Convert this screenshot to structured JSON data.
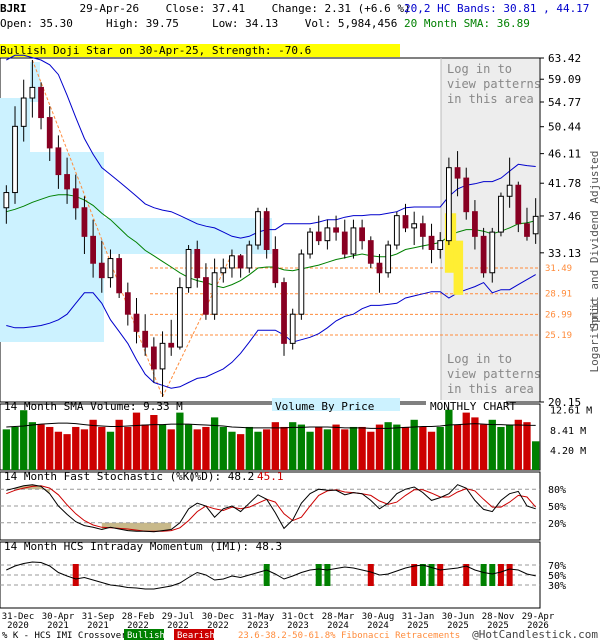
{
  "header": {
    "ticker": "BJRI",
    "date": "29-Apr-26",
    "close_label": "Close: 37.41",
    "change_label": "Change: 2.31 (+6.6 %)",
    "open_label": "Open: 35.30",
    "high_label": "High: 39.75",
    "low_label": "Low: 34.13",
    "vol_label": "Vol: 5,984,456",
    "bands_label": "20,2 HC Bands: 30.81 , 44.17",
    "sma_label": "20 Month SMA: 36.89"
  },
  "pattern_banner": "Bullish Doji Star on 30-Apr-25, Strength: -70.6",
  "log_text": "Log in to view patterns in this area",
  "colors": {
    "up": "#008000",
    "down": "#cc0000",
    "candle_down": "#880022",
    "band": "#0000cc",
    "sma": "#008000",
    "cyan": "#ccf2ff",
    "fib": "#ff8c3c"
  },
  "chart_data": [
    {
      "type": "candlestick",
      "title": "BJRI monthly",
      "y_scale": "log",
      "ylim": [
        20.15,
        63.42
      ],
      "y_ticks": [
        "63.42",
        "59.09",
        "54.77",
        "50.44",
        "46.11",
        "41.78",
        "37.46",
        "33.13",
        "20.15"
      ],
      "fib_levels": [
        "31.49",
        "28.91",
        "26.99",
        "25.19"
      ],
      "fib_values": [
        31.49,
        28.91,
        26.99,
        25.19
      ],
      "side_label": "Split and Dividend Adjusted",
      "side_label2": "Logarithmic",
      "chart_label": "MONTHLY CHART",
      "vbp_label": "Volume By Price",
      "candles": [
        [
          38.5,
          41.5,
          36.5,
          40.5
        ],
        [
          40.5,
          54.0,
          39.0,
          50.5
        ],
        [
          50.5,
          59.0,
          48.0,
          55.5
        ],
        [
          55.5,
          63.0,
          52.0,
          57.5
        ],
        [
          57.5,
          58.5,
          50.0,
          52.0
        ],
        [
          52.0,
          54.0,
          45.0,
          47.0
        ],
        [
          47.0,
          49.0,
          41.0,
          43.0
        ],
        [
          43.0,
          45.5,
          39.0,
          41.0
        ],
        [
          41.0,
          43.0,
          37.0,
          38.5
        ],
        [
          38.5,
          40.0,
          33.0,
          35.0
        ],
        [
          35.0,
          37.0,
          30.5,
          32.0
        ],
        [
          32.0,
          34.5,
          29.0,
          30.5
        ],
        [
          30.5,
          33.5,
          29.5,
          32.5
        ],
        [
          32.5,
          33.0,
          28.5,
          29.0
        ],
        [
          29.0,
          30.0,
          26.0,
          27.0
        ],
        [
          27.0,
          28.5,
          24.5,
          25.5
        ],
        [
          25.5,
          27.0,
          23.5,
          24.2
        ],
        [
          24.2,
          25.0,
          21.5,
          22.5
        ],
        [
          22.5,
          25.5,
          20.5,
          24.5
        ],
        [
          24.5,
          26.5,
          23.5,
          24.2
        ],
        [
          24.2,
          30.5,
          24.0,
          29.5
        ],
        [
          29.5,
          34.0,
          29.0,
          33.5
        ],
        [
          33.5,
          34.5,
          29.5,
          30.5
        ],
        [
          30.5,
          32.0,
          26.5,
          27.0
        ],
        [
          27.0,
          32.5,
          26.5,
          31.0
        ],
        [
          31.0,
          32.5,
          30.0,
          31.5
        ],
        [
          31.5,
          33.5,
          30.5,
          32.8
        ],
        [
          32.8,
          33.0,
          30.5,
          31.5
        ],
        [
          31.5,
          34.5,
          31.0,
          34.0
        ],
        [
          34.0,
          38.5,
          33.5,
          38.0
        ],
        [
          38.0,
          38.5,
          32.5,
          33.5
        ],
        [
          33.5,
          35.0,
          29.5,
          30.0
        ],
        [
          30.0,
          30.5,
          23.5,
          24.5
        ],
        [
          24.5,
          27.5,
          24.0,
          27.0
        ],
        [
          27.0,
          33.5,
          26.5,
          33.0
        ],
        [
          33.0,
          36.0,
          32.5,
          35.5
        ],
        [
          35.5,
          37.5,
          34.0,
          34.5
        ],
        [
          34.5,
          37.0,
          33.5,
          36.0
        ],
        [
          36.0,
          37.5,
          34.5,
          35.5
        ],
        [
          35.5,
          37.0,
          32.5,
          33.0
        ],
        [
          33.0,
          37.0,
          32.5,
          36.0
        ],
        [
          36.0,
          37.0,
          33.5,
          34.5
        ],
        [
          34.5,
          35.0,
          31.5,
          32.0
        ],
        [
          32.0,
          33.0,
          29.0,
          31.0
        ],
        [
          31.0,
          34.5,
          30.5,
          34.0
        ],
        [
          34.0,
          38.0,
          33.5,
          37.5
        ],
        [
          37.5,
          39.0,
          35.5,
          36.0
        ],
        [
          36.0,
          38.0,
          34.0,
          36.5
        ],
        [
          36.5,
          37.5,
          33.5,
          35.0
        ],
        [
          35.0,
          36.5,
          32.0,
          33.5
        ],
        [
          33.5,
          35.5,
          32.5,
          34.5
        ],
        [
          34.5,
          45.5,
          34.0,
          44.0
        ],
        [
          44.0,
          46.5,
          40.0,
          42.5
        ],
        [
          42.5,
          44.0,
          37.0,
          38.0
        ],
        [
          38.0,
          39.5,
          33.5,
          35.0
        ],
        [
          35.0,
          36.0,
          30.5,
          31.0
        ],
        [
          31.0,
          36.0,
          30.0,
          35.5
        ],
        [
          35.5,
          40.5,
          35.0,
          40.0
        ],
        [
          40.0,
          45.5,
          38.5,
          41.5
        ],
        [
          41.5,
          42.0,
          35.5,
          36.5
        ],
        [
          36.5,
          38.5,
          34.5,
          35.0
        ],
        [
          35.3,
          39.75,
          34.13,
          37.41
        ]
      ],
      "upper_band": [
        63.0,
        64.0,
        64.0,
        63.5,
        63.0,
        62.0,
        60.0,
        56.0,
        52.0,
        48.5,
        46.0,
        44.0,
        43.0,
        42.0,
        41.0,
        40.0,
        39.0,
        38.5,
        38.2,
        38.0,
        37.5,
        37.0,
        36.5,
        36.2,
        36.0,
        35.5,
        35.0,
        34.8,
        35.0,
        35.5,
        35.8,
        35.8,
        36.5,
        36.5,
        36.5,
        36.5,
        36.7,
        37.0,
        37.0,
        37.3,
        37.5,
        37.5,
        37.6,
        37.6,
        37.8,
        38.0,
        38.5,
        38.6,
        38.6,
        38.6,
        38.6,
        40.0,
        41.0,
        41.5,
        41.7,
        42.0,
        42.0,
        42.5,
        43.5,
        44.5,
        44.3,
        44.17
      ],
      "sma": [
        38.0,
        38.3,
        38.7,
        39.2,
        39.6,
        40.0,
        40.2,
        40.2,
        40.0,
        39.5,
        38.8,
        37.8,
        37.0,
        36.0,
        35.0,
        34.3,
        33.4,
        32.8,
        32.2,
        31.6,
        31.0,
        30.5,
        30.2,
        30.0,
        29.7,
        29.5,
        29.8,
        30.2,
        30.8,
        31.5,
        31.6,
        31.6,
        31.3,
        31.2,
        31.4,
        31.6,
        31.8,
        32.1,
        32.4,
        32.6,
        32.8,
        33.0,
        32.8,
        32.7,
        32.7,
        33.0,
        33.5,
        33.7,
        33.9,
        34.1,
        34.3,
        35.0,
        35.5,
        35.8,
        35.8,
        35.6,
        35.3,
        35.6,
        36.0,
        36.5,
        36.6,
        36.89
      ],
      "lower_band": [
        26.0,
        25.8,
        25.8,
        25.9,
        26.0,
        26.2,
        26.5,
        27.0,
        28.0,
        29.0,
        29.0,
        28.0,
        26.5,
        25.5,
        24.5,
        23.2,
        22.1,
        21.5,
        21.3,
        21.1,
        21.2,
        21.5,
        21.8,
        21.9,
        22.2,
        22.5,
        23.0,
        23.7,
        24.6,
        25.6,
        25.6,
        25.6,
        25.2,
        24.6,
        24.8,
        25.0,
        25.3,
        25.8,
        26.4,
        26.8,
        27.0,
        27.5,
        27.8,
        27.8,
        27.9,
        28.0,
        28.5,
        28.7,
        28.9,
        29.1,
        29.1,
        28.5,
        29.0,
        29.3,
        29.6,
        30.0,
        29.0,
        29.3,
        29.3,
        29.8,
        30.3,
        30.81
      ]
    },
    {
      "type": "bar",
      "title": "14 Month SMA Volume: 9.33 M",
      "y_ticks": [
        "12.61 M",
        "8.41 M",
        "4.20 M"
      ],
      "ylim": [
        0,
        13.8
      ],
      "values": [
        8.5,
        9.0,
        12.5,
        10.0,
        9.5,
        9.0,
        8.0,
        7.5,
        9.0,
        8.5,
        10.5,
        9.0,
        8.0,
        10.5,
        9.0,
        12.0,
        9.5,
        11.5,
        9.5,
        8.5,
        12.0,
        9.5,
        8.5,
        9.0,
        11.0,
        9.0,
        8.0,
        7.5,
        9.0,
        8.0,
        8.5,
        10.0,
        9.0,
        10.0,
        9.5,
        8.0,
        9.0,
        8.5,
        9.5,
        8.5,
        9.0,
        9.0,
        8.0,
        9.5,
        10.0,
        9.5,
        9.0,
        10.5,
        9.0,
        8.0,
        9.0,
        12.61,
        9.5,
        12.0,
        11.0,
        9.5,
        10.5,
        9.0,
        9.5,
        10.5,
        10.0,
        6.0
      ],
      "sma": [
        9.0,
        9.1,
        9.2,
        9.4,
        9.6,
        9.7,
        9.8,
        9.8,
        9.7,
        9.5,
        9.3,
        9.2,
        9.1,
        9.1,
        9.2,
        9.3,
        9.4,
        9.5,
        9.5,
        9.6,
        9.6,
        9.6,
        9.5,
        9.4,
        9.3,
        9.2,
        9.0,
        8.9,
        8.8,
        8.8,
        8.8,
        8.8,
        8.8,
        8.9,
        8.9,
        9.0,
        9.0,
        9.0,
        8.9,
        8.8,
        8.8,
        8.8,
        8.7,
        8.7,
        8.7,
        8.8,
        8.9,
        9.0,
        9.1,
        9.1,
        9.2,
        9.4,
        9.5,
        9.6,
        9.7,
        9.6,
        9.5,
        9.5,
        9.4,
        9.4,
        9.35,
        9.33
      ]
    },
    {
      "type": "line",
      "title": "14 Month Fast Stochastic (%K)",
      "title_d": "(%D): 48.2",
      "title_k_val": "45.1",
      "y_ticks": [
        "80%",
        "50%",
        "20%"
      ],
      "ylim": [
        0,
        100
      ],
      "k": [
        78,
        82,
        86,
        88,
        85,
        72,
        50,
        35,
        22,
        15,
        12,
        8,
        12,
        9,
        6,
        5,
        5,
        4,
        6,
        8,
        20,
        45,
        55,
        50,
        30,
        45,
        50,
        40,
        55,
        70,
        62,
        38,
        10,
        25,
        55,
        72,
        80,
        78,
        78,
        70,
        74,
        72,
        60,
        45,
        55,
        72,
        80,
        84,
        74,
        60,
        65,
        72,
        88,
        82,
        60,
        44,
        40,
        60,
        72,
        76,
        50,
        45
      ],
      "d": [
        72,
        78,
        82,
        85,
        86,
        82,
        70,
        52,
        36,
        24,
        16,
        12,
        11,
        10,
        9,
        7,
        5,
        5,
        5,
        6,
        11,
        24,
        40,
        50,
        45,
        42,
        48,
        45,
        48,
        55,
        62,
        57,
        36,
        24,
        30,
        50,
        69,
        77,
        79,
        75,
        74,
        72,
        69,
        59,
        53,
        57,
        69,
        79,
        79,
        73,
        66,
        66,
        75,
        81,
        77,
        62,
        48,
        48,
        57,
        69,
        66,
        48
      ]
    },
    {
      "type": "line",
      "title": "14 Month HCS Intraday Momentum (IMI): 48.3",
      "y_ticks": [
        "70%",
        "50%",
        "30%"
      ],
      "ylim": [
        0,
        100
      ],
      "values": [
        60,
        68,
        73,
        76,
        75,
        68,
        55,
        48,
        42,
        45,
        40,
        35,
        30,
        28,
        25,
        24,
        22,
        22,
        25,
        28,
        34,
        45,
        55,
        50,
        40,
        42,
        48,
        45,
        50,
        55,
        60,
        52,
        42,
        48,
        55,
        60,
        62,
        60,
        63,
        66,
        64,
        60,
        56,
        50,
        52,
        58,
        64,
        68,
        70,
        65,
        60,
        62,
        64,
        68,
        60,
        55,
        52,
        56,
        62,
        60,
        52,
        48.3
      ],
      "signals_bull": [
        30,
        36,
        37,
        48,
        49,
        55,
        56
      ],
      "signals_bear": [
        8,
        42,
        47,
        50,
        53,
        57,
        58
      ]
    }
  ],
  "x_labels": [
    "31-Dec\n2020",
    "30-Apr\n2021",
    "31-Sep\n2021",
    "28-Feb\n2022",
    "29-Jul\n2022",
    "30-Dec\n2022",
    "31-May\n2023",
    "31-Oct\n2023",
    "28-Mar\n2024",
    "30-Aug\n2024",
    "31-Jan\n2025",
    "30-Jun\n2025",
    "28-Nov\n2025",
    "29-Apr\n2026"
  ],
  "legend": {
    "prefix": "% K - HCS IMI Crossover:",
    "bullish": "Bullish",
    "bearish": "Bearish",
    "fib": "23.6-38.2-50-61.8% Fibonacci Retracements",
    "watermark": "@HotCandlestick.com"
  }
}
